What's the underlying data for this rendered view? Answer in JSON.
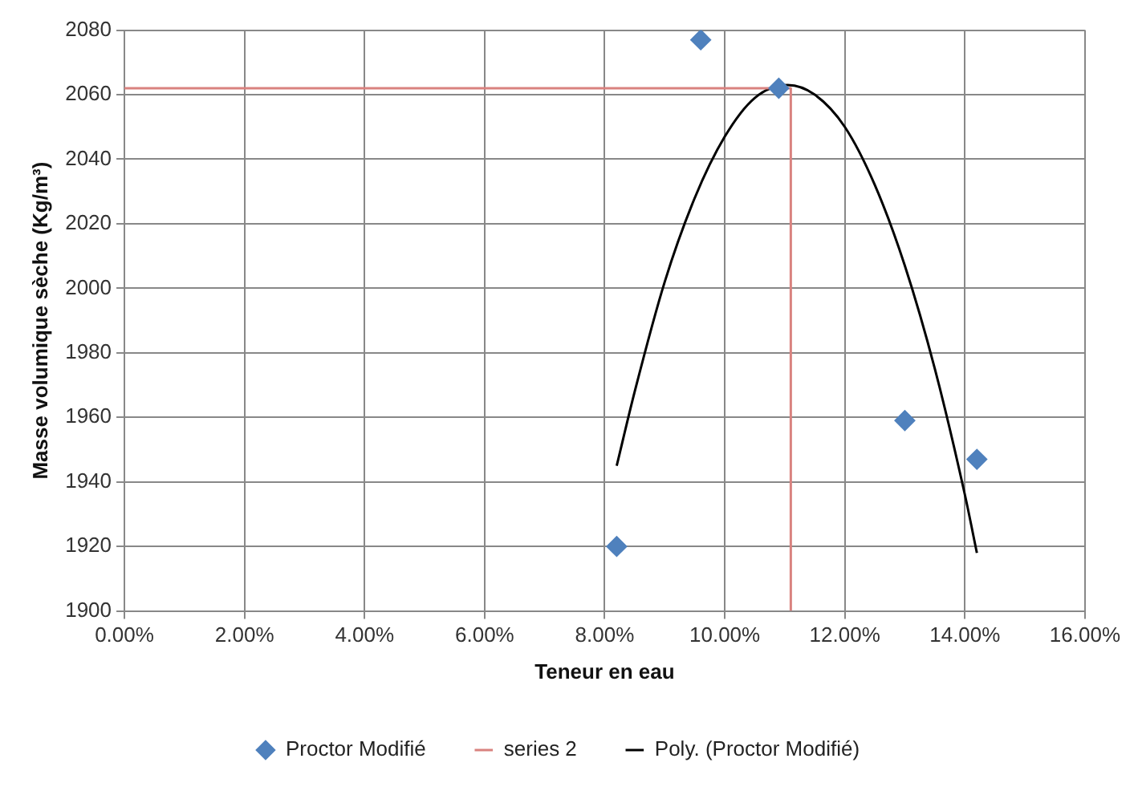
{
  "chart_data": {
    "type": "scatter",
    "xlabel": "Teneur en eau",
    "ylabel": "Masse volumique sèche (Kg/m³)",
    "xlim": [
      0,
      16
    ],
    "xticks": [
      {
        "value": 0,
        "label": "0.00%"
      },
      {
        "value": 2,
        "label": "2.00%"
      },
      {
        "value": 4,
        "label": "4.00%"
      },
      {
        "value": 6,
        "label": "6.00%"
      },
      {
        "value": 8,
        "label": "8.00%"
      },
      {
        "value": 10,
        "label": "10.00%"
      },
      {
        "value": 12,
        "label": "12.00%"
      },
      {
        "value": 14,
        "label": "14.00%"
      },
      {
        "value": 16,
        "label": "16.00%"
      }
    ],
    "ylim": [
      1900,
      2080
    ],
    "yticks": [
      1900,
      1920,
      1940,
      1960,
      1980,
      2000,
      2020,
      2040,
      2060,
      2080
    ],
    "grid": true,
    "legend": "bottom",
    "series": [
      {
        "name": "Proctor Modifié",
        "marker": "diamond",
        "color": "#4f81bd",
        "x": [
          8.2,
          9.6,
          10.9,
          13.0,
          14.2
        ],
        "values": [
          1920,
          2077,
          2062,
          1959,
          1947
        ]
      },
      {
        "name": "series 2",
        "type": "line",
        "marker": "none",
        "color": "#d9827f",
        "x": [
          0,
          11.1,
          11.1
        ],
        "values": [
          2062,
          2062,
          1900
        ]
      },
      {
        "name": "Poly. (Proctor Modifié)",
        "type": "line",
        "marker": "none",
        "color": "#000000",
        "x": [
          8.2,
          8.5,
          9,
          9.5,
          10,
          10.5,
          11.05,
          11.5,
          12,
          12.5,
          13,
          13.5,
          14,
          14.2
        ],
        "values": [
          1945,
          1968,
          2002,
          2028,
          2047,
          2059,
          2063,
          2060,
          2050,
          2032,
          2007,
          1975,
          1936,
          1918
        ]
      }
    ]
  }
}
